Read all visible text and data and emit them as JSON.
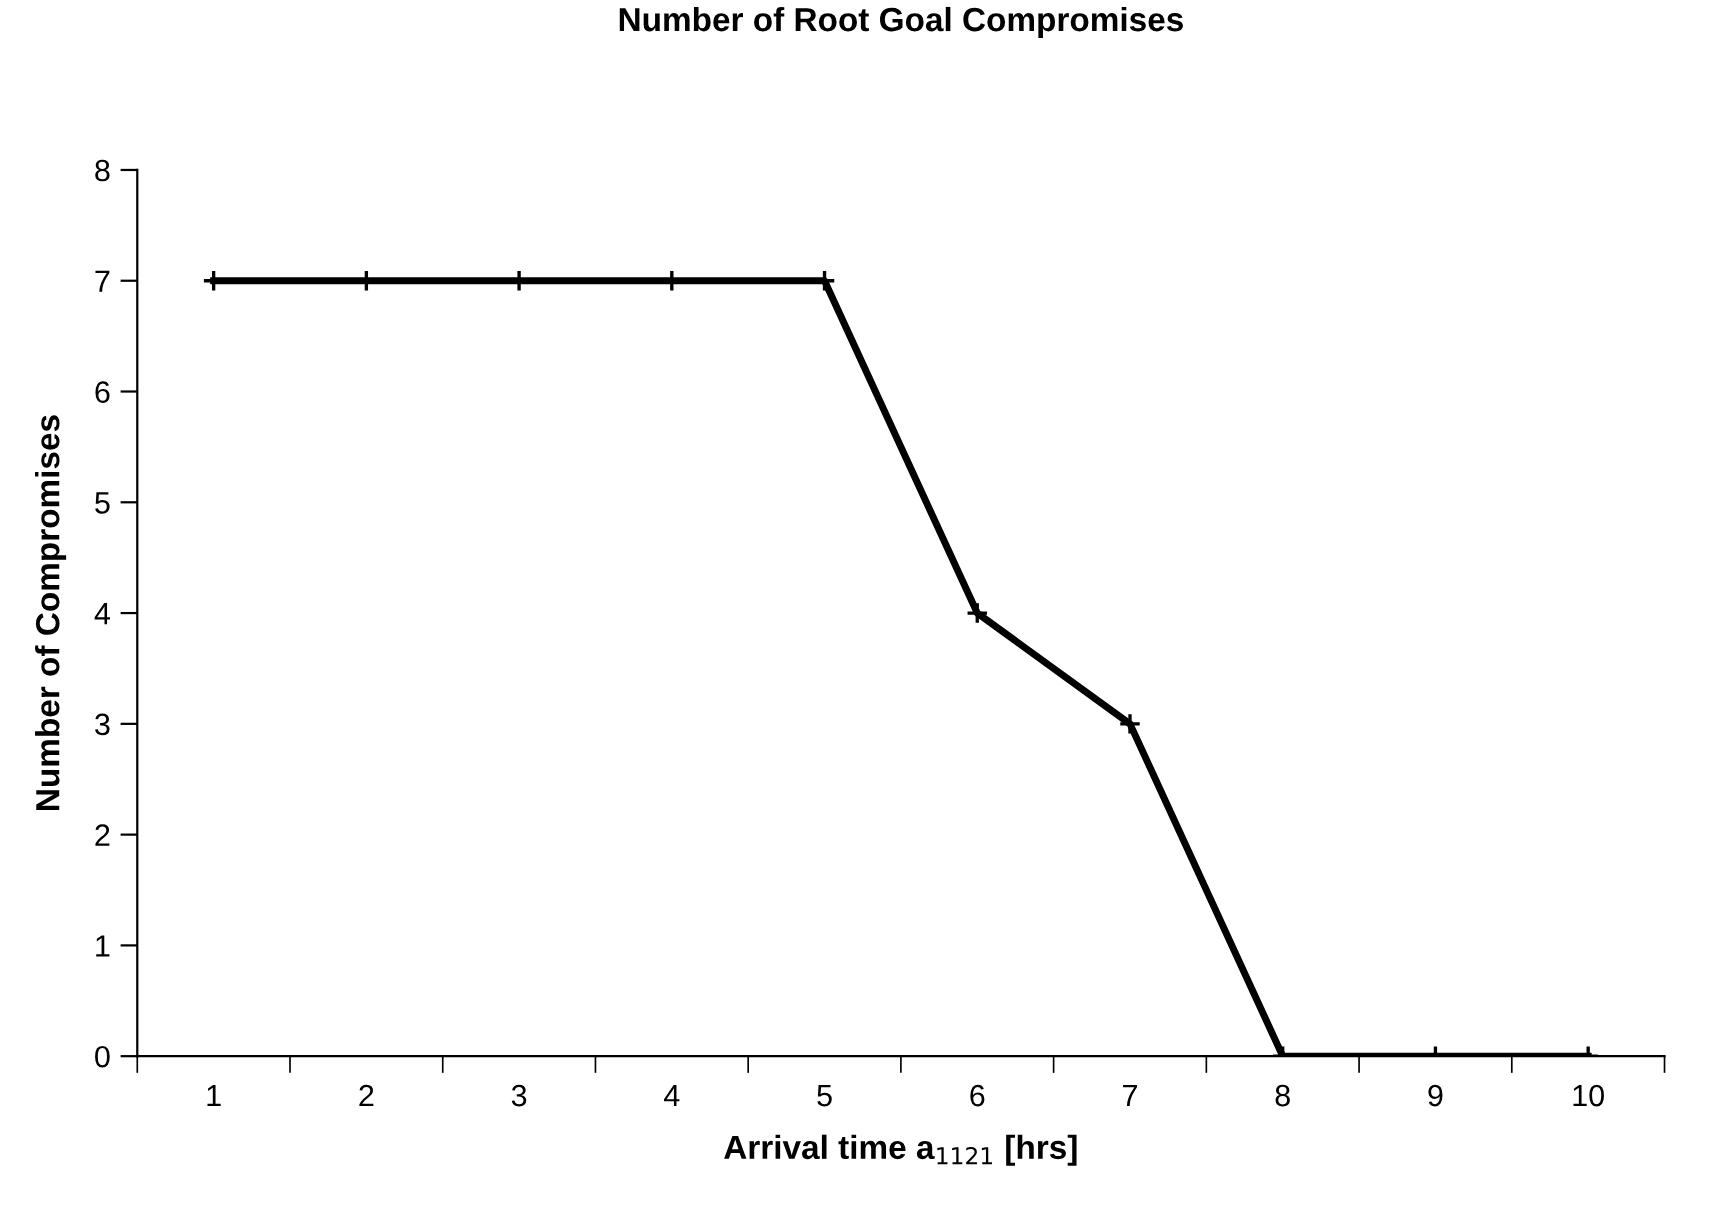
{
  "chart_data": {
    "type": "line",
    "title": "Number of Root Goal Compromises",
    "xlabel": "Arrival time a$_{1121}$ [hrs]",
    "ylabel": "Number of Compromises",
    "categories": [
      "1",
      "2",
      "3",
      "4",
      "5",
      "6",
      "7",
      "8",
      "9",
      "10"
    ],
    "series": [
      {
        "color": "#000000",
        "values": [
          7,
          7,
          7,
          7,
          7,
          4,
          3,
          0,
          0,
          0
        ]
      }
    ],
    "ylim": [
      0,
      8
    ],
    "yticks": [
      0,
      1,
      2,
      3,
      4,
      5,
      6,
      7,
      8
    ],
    "grid": false,
    "legend": false,
    "marker": "cross",
    "line_style": "solid"
  }
}
